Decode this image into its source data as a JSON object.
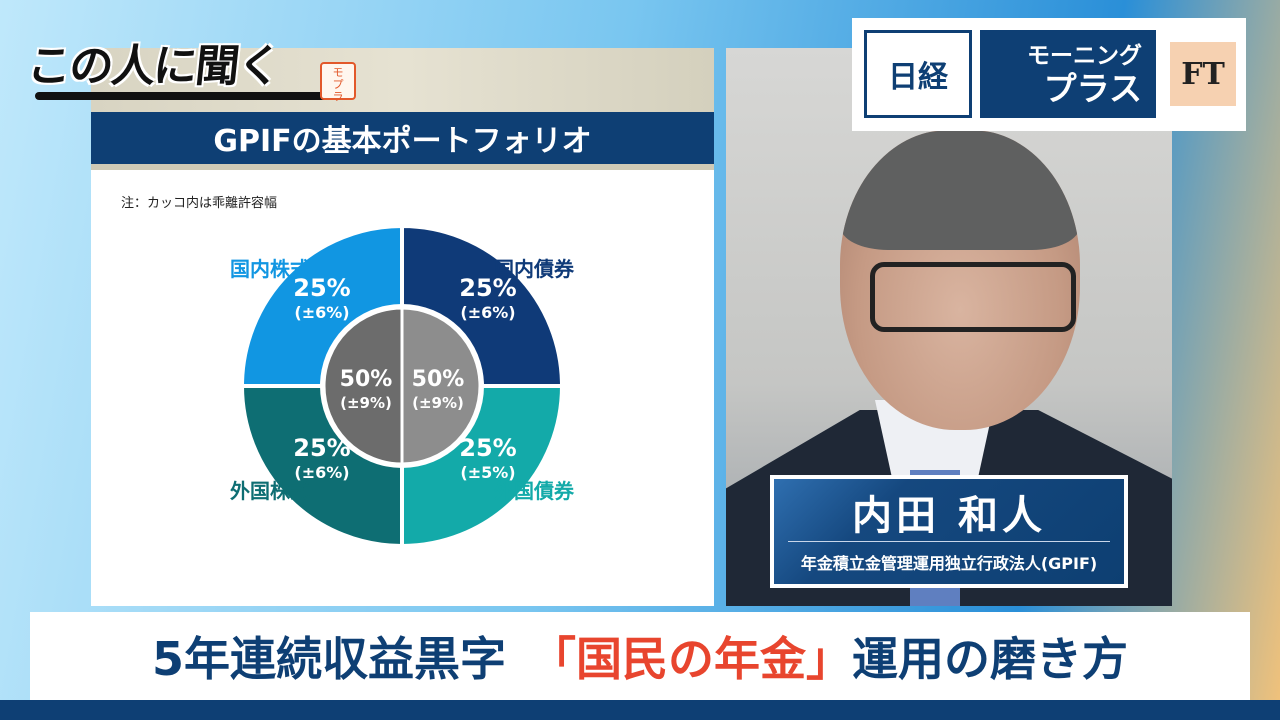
{
  "show": {
    "title": "この人に聞く",
    "seal": "モーニングプラス"
  },
  "logo": {
    "nikkei": "日経",
    "morning": "モーニング",
    "plus": "プラス",
    "ft": "FT"
  },
  "nameplate": {
    "name": "内田 和人",
    "org": "年金積立金管理運用独立行政法人(GPIF)"
  },
  "banner": {
    "part1": "5年連続収益黒字",
    "part2": "「国民の年金」",
    "part3": "運用の磨き方"
  },
  "chart_data": {
    "type": "pie",
    "title": "GPIFの基本ポートフォリオ",
    "note": "注：カッコ内は乖離許容幅",
    "outer": [
      {
        "label": "国内株式",
        "value": "25%",
        "range": "(±6%)",
        "share": 25,
        "color": "#1196e2"
      },
      {
        "label": "国内債券",
        "value": "25%",
        "range": "(±6%)",
        "share": 25,
        "color": "#0f3a78"
      },
      {
        "label": "外国債券",
        "value": "25%",
        "range": "(±5%)",
        "share": 25,
        "color": "#13aaa9"
      },
      {
        "label": "外国株式",
        "value": "25%",
        "range": "(±6%)",
        "share": 25,
        "color": "#0e6e73"
      }
    ],
    "inner": [
      {
        "value": "50%",
        "range": "(±9%)",
        "share": 50,
        "color": "#8d8d8d"
      },
      {
        "value": "50%",
        "range": "(±9%)",
        "share": 50,
        "color": "#6c6c6c"
      }
    ]
  }
}
